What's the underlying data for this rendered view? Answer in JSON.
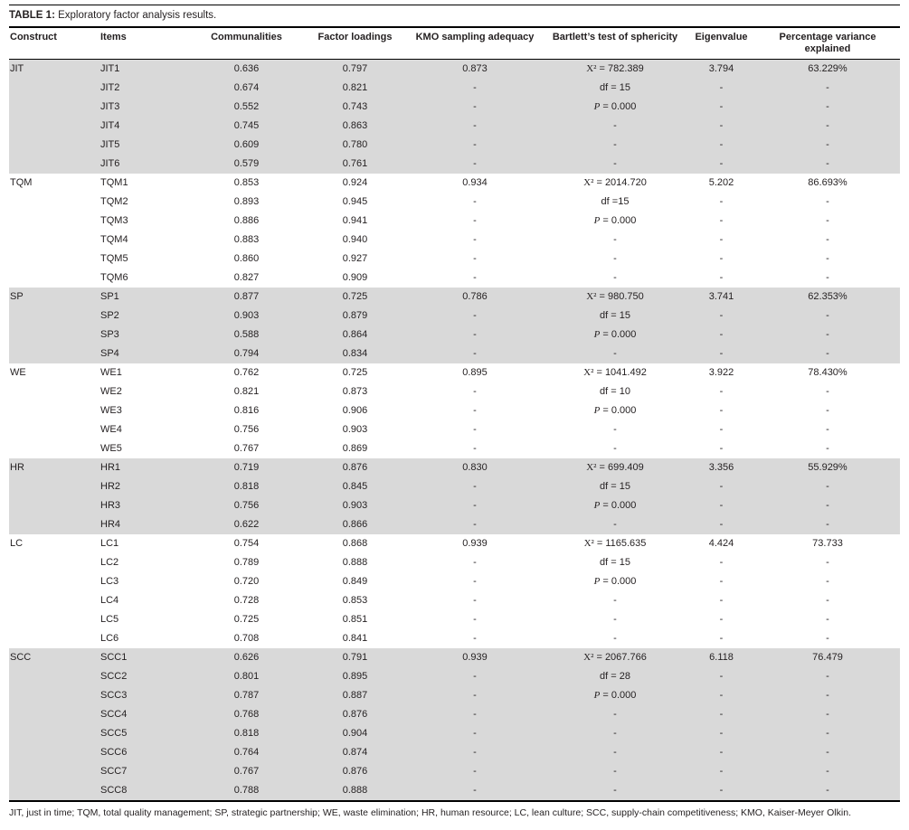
{
  "page": {
    "title_label": "TABLE 1:",
    "title_caption": " Exploratory factor analysis results.",
    "footnote": "JIT, just in time; TQM, total quality management; SP, strategic partnership; WE, waste elimination; HR, human resource; LC, lean culture; SCC, supply-chain competitiveness; KMO, Kaiser-Meyer Olkin."
  },
  "colors": {
    "group_shade": "#d9d9d9",
    "rule": "#000000",
    "text": "#231f20"
  },
  "table": {
    "headers": [
      "Construct",
      "Items",
      "Communalities",
      "Factor loadings",
      "KMO sampling adequacy",
      "Bartlett’s test of sphericity",
      "Eigenvalue",
      "Percentage variance explained"
    ],
    "groups": [
      {
        "construct": "JIT",
        "shaded": true,
        "rows": [
          [
            "JIT1",
            "0.636",
            "0.797",
            "0.873",
            "X² = 782.389",
            "3.794",
            "63.229%"
          ],
          [
            "JIT2",
            "0.674",
            "0.821",
            "-",
            "df = 15",
            "-",
            "-"
          ],
          [
            "JIT3",
            "0.552",
            "0.743",
            "-",
            "P = 0.000",
            "-",
            "-"
          ],
          [
            "JIT4",
            "0.745",
            "0.863",
            "-",
            "-",
            "-",
            "-"
          ],
          [
            "JIT5",
            "0.609",
            "0.780",
            "-",
            "-",
            "-",
            "-"
          ],
          [
            "JIT6",
            "0.579",
            "0.761",
            "-",
            "-",
            "-",
            "-"
          ]
        ]
      },
      {
        "construct": "TQM",
        "shaded": false,
        "rows": [
          [
            "TQM1",
            "0.853",
            "0.924",
            "0.934",
            "X² = 2014.720",
            "5.202",
            "86.693%"
          ],
          [
            "TQM2",
            "0.893",
            "0.945",
            "-",
            "df =15",
            "-",
            "-"
          ],
          [
            "TQM3",
            "0.886",
            "0.941",
            "-",
            "P = 0.000",
            "-",
            "-"
          ],
          [
            "TQM4",
            "0.883",
            "0.940",
            "-",
            "-",
            "-",
            "-"
          ],
          [
            "TQM5",
            "0.860",
            "0.927",
            "-",
            "-",
            "-",
            "-"
          ],
          [
            "TQM6",
            "0.827",
            "0.909",
            "-",
            "-",
            "-",
            "-"
          ]
        ]
      },
      {
        "construct": "SP",
        "shaded": true,
        "rows": [
          [
            "SP1",
            "0.877",
            "0.725",
            "0.786",
            "X² = 980.750",
            "3.741",
            "62.353%"
          ],
          [
            "SP2",
            "0.903",
            "0.879",
            "-",
            "df = 15",
            "-",
            "-"
          ],
          [
            "SP3",
            "0.588",
            "0.864",
            "-",
            "P = 0.000",
            "-",
            "-"
          ],
          [
            "SP4",
            "0.794",
            "0.834",
            "-",
            "-",
            "-",
            "-"
          ]
        ]
      },
      {
        "construct": "WE",
        "shaded": false,
        "rows": [
          [
            "WE1",
            "0.762",
            "0.725",
            "0.895",
            "X² = 1041.492",
            "3.922",
            "78.430%"
          ],
          [
            "WE2",
            "0.821",
            "0.873",
            "-",
            "df = 10",
            "-",
            "-"
          ],
          [
            "WE3",
            "0.816",
            "0.906",
            "-",
            "P = 0.000",
            "-",
            "-"
          ],
          [
            "WE4",
            "0.756",
            "0.903",
            "-",
            "-",
            "-",
            "-"
          ],
          [
            "WE5",
            "0.767",
            "0.869",
            "-",
            "-",
            "-",
            "-"
          ]
        ]
      },
      {
        "construct": "HR",
        "shaded": true,
        "rows": [
          [
            "HR1",
            "0.719",
            "0.876",
            "0.830",
            "X² = 699.409",
            "3.356",
            "55.929%"
          ],
          [
            "HR2",
            "0.818",
            "0.845",
            "-",
            "df = 15",
            "-",
            "-"
          ],
          [
            "HR3",
            "0.756",
            "0.903",
            "-",
            "P = 0.000",
            "-",
            "-"
          ],
          [
            "HR4",
            "0.622",
            "0.866",
            "-",
            "-",
            "-",
            "-"
          ]
        ]
      },
      {
        "construct": "LC",
        "shaded": false,
        "rows": [
          [
            "LC1",
            "0.754",
            "0.868",
            "0.939",
            "X² = 1165.635",
            "4.424",
            "73.733"
          ],
          [
            "LC2",
            "0.789",
            "0.888",
            "-",
            "df = 15",
            "-",
            "-"
          ],
          [
            "LC3",
            "0.720",
            "0.849",
            "-",
            "P = 0.000",
            "-",
            "-"
          ],
          [
            "LC4",
            "0.728",
            "0.853",
            "-",
            "-",
            "-",
            "-"
          ],
          [
            "LC5",
            "0.725",
            "0.851",
            "-",
            "-",
            "-",
            "-"
          ],
          [
            "LC6",
            "0.708",
            "0.841",
            "-",
            "-",
            "-",
            "-"
          ]
        ]
      },
      {
        "construct": "SCC",
        "shaded": true,
        "rows": [
          [
            "SCC1",
            "0.626",
            "0.791",
            "0.939",
            "X² = 2067.766",
            "6.118",
            "76.479"
          ],
          [
            "SCC2",
            "0.801",
            "0.895",
            "-",
            "df = 28",
            "-",
            "-"
          ],
          [
            "SCC3",
            "0.787",
            "0.887",
            "-",
            "P = 0.000",
            "-",
            "-"
          ],
          [
            "SCC4",
            "0.768",
            "0.876",
            "-",
            "-",
            "-",
            "-"
          ],
          [
            "SCC5",
            "0.818",
            "0.904",
            "-",
            "-",
            "-",
            "-"
          ],
          [
            "SCC6",
            "0.764",
            "0.874",
            "-",
            "-",
            "-",
            "-"
          ],
          [
            "SCC7",
            "0.767",
            "0.876",
            "-",
            "-",
            "-",
            "-"
          ],
          [
            "SCC8",
            "0.788",
            "0.888",
            "-",
            "-",
            "-",
            "-"
          ]
        ]
      }
    ]
  }
}
